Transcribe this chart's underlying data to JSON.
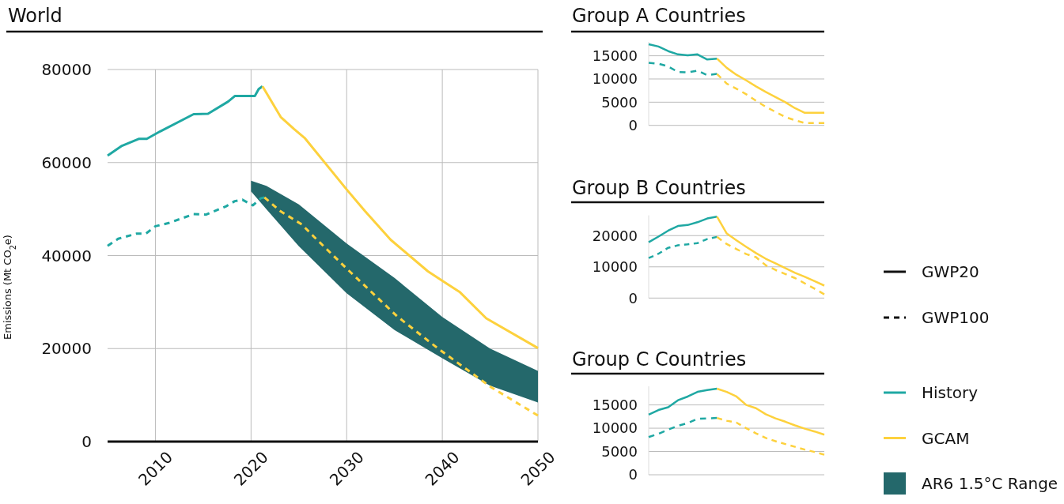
{
  "chart_data": [
    {
      "type": "line",
      "title": "World",
      "ylabel": "Emissions (Mt CO$_{2}$e)",
      "xlim": [
        2005,
        2050
      ],
      "xticks": [
        2010,
        2020,
        2030,
        2040,
        2050
      ],
      "ylim": [
        0,
        80000
      ],
      "yticks": [
        0,
        20000,
        40000,
        60000,
        80000
      ],
      "grid": true,
      "legend": "right",
      "annotations": [
        "GWP20",
        "GWP100"
      ],
      "series": [
        {
          "name": "History",
          "line_style": "solid",
          "color": "#1fa8a3",
          "x": [
            2005,
            2006.5,
            2008.3,
            2009.1,
            2010.5,
            2014,
            2015.5,
            2017.6,
            2018.3,
            2020.4,
            2020.8,
            2021.2
          ],
          "values": [
            61500,
            63600,
            65100,
            65100,
            66700,
            70400,
            70500,
            73100,
            74300,
            74300,
            75800,
            76400
          ]
        },
        {
          "line_style": "dashed",
          "color": "#1fa8a3",
          "x": [
            2005,
            2006.1,
            2008,
            2009,
            2010,
            2011.4,
            2014,
            2015.3,
            2017.4,
            2018.3,
            2019.1,
            2020.2,
            2021,
            2021.4
          ],
          "values": [
            42100,
            43600,
            44700,
            44700,
            46300,
            47000,
            48900,
            48800,
            50600,
            51700,
            52000,
            50800,
            52300,
            52500
          ]
        },
        {
          "name": "GCAM",
          "line_style": "solid",
          "color": "#fdd13d",
          "x": [
            2021.2,
            2023.1,
            2024.5,
            2025.6,
            2030,
            2031.9,
            2034.6,
            2038.5,
            2040.2,
            2041.8,
            2044.6,
            2050
          ],
          "values": [
            76400,
            69800,
            67200,
            65300,
            54200,
            49600,
            43400,
            36600,
            34300,
            32200,
            26500,
            20100
          ]
        },
        {
          "line_style": "dashed",
          "color": "#fdd13d",
          "x": [
            2021.4,
            2023.1,
            2025.3,
            2026.6,
            2030,
            2035.3,
            2039.5,
            2045.1,
            2050
          ],
          "values": [
            52500,
            49500,
            46700,
            44000,
            37200,
            26900,
            20100,
            11700,
            5600
          ]
        },
        {
          "name": "AR6 1.5°C Range",
          "type": "area",
          "color": "#24686b",
          "x": [
            2020,
            2021.6,
            2025,
            2030,
            2035,
            2040,
            2045,
            2050
          ],
          "values": [
            null,
            null,
            null,
            null,
            null,
            null,
            null,
            null
          ],
          "lower": [
            53800,
            50000,
            42000,
            31900,
            24000,
            17900,
            12000,
            8400
          ],
          "upper": [
            56100,
            55000,
            51000,
            42600,
            35200,
            26800,
            20000,
            15200
          ]
        }
      ]
    },
    {
      "type": "line",
      "title": "Group A Countries",
      "categories": [
        null,
        null,
        null,
        null,
        null,
        null,
        null,
        null,
        null,
        null,
        null,
        null,
        null,
        null,
        null,
        null,
        null,
        null,
        null
      ],
      "ylim": [
        0,
        18000
      ],
      "yticks": [
        0,
        5000,
        10000,
        15000
      ],
      "grid": "y",
      "tick_labels": "y",
      "series": [
        {
          "line_style": "solid",
          "color": "#1fa8a3",
          "values": [
            17500,
            17000,
            16000,
            15300,
            15100,
            15300,
            14200,
            14400,
            null,
            null,
            null,
            null,
            null,
            null,
            null,
            null,
            null,
            null,
            null
          ]
        },
        {
          "line_style": "dashed",
          "color": "#1fa8a3",
          "values": [
            13500,
            13300,
            12700,
            11500,
            11400,
            11800,
            10800,
            11100,
            null,
            null,
            null,
            null,
            null,
            null,
            null,
            null,
            null,
            null,
            null
          ]
        },
        {
          "line_style": "solid",
          "color": "#fdd13d",
          "values": [
            null,
            null,
            null,
            null,
            null,
            null,
            null,
            14400,
            12400,
            10900,
            9700,
            8400,
            7200,
            6100,
            5000,
            3700,
            2700,
            2700,
            2700
          ]
        },
        {
          "line_style": "dashed",
          "color": "#fdd13d",
          "values": [
            null,
            null,
            null,
            null,
            null,
            null,
            null,
            11100,
            9000,
            7900,
            6700,
            5300,
            4000,
            2900,
            1800,
            1100,
            500,
            500,
            500
          ]
        }
      ]
    },
    {
      "type": "line",
      "title": "Group B Countries",
      "categories": [
        null,
        null,
        null,
        null,
        null,
        null,
        null,
        null,
        null,
        null,
        null,
        null,
        null,
        null,
        null,
        null,
        null,
        null,
        null
      ],
      "ylim": [
        0,
        26500
      ],
      "yticks": [
        0,
        10000,
        20000
      ],
      "grid": "y",
      "tick_labels": "y",
      "series": [
        {
          "line_style": "solid",
          "color": "#1fa8a3",
          "values": [
            17900,
            19700,
            21600,
            23100,
            23400,
            24300,
            25500,
            26100,
            null,
            null,
            null,
            null,
            null,
            null,
            null,
            null,
            null,
            null,
            null
          ]
        },
        {
          "line_style": "dashed",
          "color": "#1fa8a3",
          "values": [
            12800,
            14200,
            16100,
            16900,
            17200,
            17600,
            18900,
            19600,
            null,
            null,
            null,
            null,
            null,
            null,
            null,
            null,
            null,
            null,
            null
          ]
        },
        {
          "line_style": "solid",
          "color": "#fdd13d",
          "values": [
            null,
            null,
            null,
            null,
            null,
            null,
            null,
            26100,
            20700,
            18500,
            16400,
            14400,
            12600,
            11100,
            9600,
            8100,
            6800,
            5400,
            4000
          ]
        },
        {
          "line_style": "dashed",
          "color": "#fdd13d",
          "values": [
            null,
            null,
            null,
            null,
            null,
            null,
            null,
            19600,
            17300,
            15700,
            14100,
            13100,
            10500,
            9000,
            7700,
            6400,
            4700,
            3000,
            1200
          ]
        }
      ]
    },
    {
      "type": "line",
      "title": "Group C Countries",
      "categories": [
        null,
        null,
        null,
        null,
        null,
        null,
        null,
        null,
        null,
        null,
        null,
        null,
        null,
        null,
        null,
        null,
        null,
        null,
        null
      ],
      "ylim": [
        0,
        19000
      ],
      "yticks": [
        0,
        5000,
        10000,
        15000
      ],
      "grid": "y",
      "tick_labels": "y",
      "series": [
        {
          "line_style": "solid",
          "color": "#1fa8a3",
          "values": [
            12900,
            13900,
            14500,
            16000,
            16800,
            17800,
            18200,
            18500,
            null,
            null,
            null,
            null,
            null,
            null,
            null,
            null,
            null,
            null,
            null
          ]
        },
        {
          "line_style": "dashed",
          "color": "#1fa8a3",
          "values": [
            8100,
            8800,
            9700,
            10500,
            11100,
            12000,
            12100,
            12200,
            null,
            null,
            null,
            null,
            null,
            null,
            null,
            null,
            null,
            null,
            null
          ]
        },
        {
          "line_style": "solid",
          "color": "#fdd13d",
          "values": [
            null,
            null,
            null,
            null,
            null,
            null,
            null,
            18500,
            17800,
            16800,
            15000,
            14300,
            13000,
            12100,
            11400,
            10600,
            9900,
            9300,
            8600
          ]
        },
        {
          "line_style": "dashed",
          "color": "#fdd13d",
          "values": [
            null,
            null,
            null,
            null,
            null,
            null,
            null,
            12200,
            11600,
            11200,
            10000,
            8900,
            7900,
            7200,
            6600,
            6000,
            5400,
            4900,
            4300
          ]
        }
      ]
    }
  ]
}
